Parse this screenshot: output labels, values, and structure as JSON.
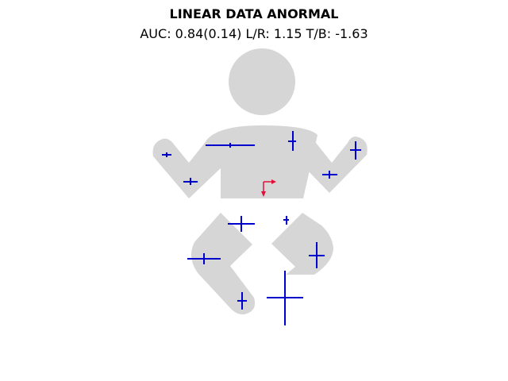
{
  "title": "LINEAR DATA ANORMAL",
  "subtitle": "AUC: 0.84(0.14) L/R: 1.15 T/B: -1.63",
  "colors": {
    "body": "#d6d6d6",
    "markers": "#0000cc",
    "arrow": "#e0103a"
  },
  "icons": {
    "body_figure": "infant-body-silhouette",
    "center_arrow": "red-l-shaped-arrow"
  }
}
